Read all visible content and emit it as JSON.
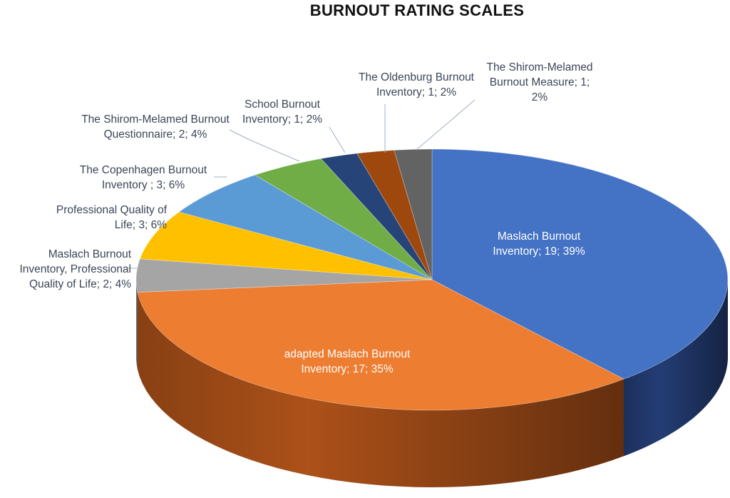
{
  "chart_data": {
    "type": "pie",
    "title": "BURNOUT RATING SCALES",
    "slices": [
      {
        "category": "Maslach Burnout Inventory",
        "value": 19,
        "percent": "39%",
        "label": "Maslach Burnout Inventory; 19; 39%",
        "color": "#4472c4",
        "side": "#25407a"
      },
      {
        "category": "adapted Maslach Burnout Inventory",
        "value": 17,
        "percent": "35%",
        "label": "adapted Maslach Burnout Inventory; 17; 35%",
        "color": "#ed7d31",
        "side": "#b5551a"
      },
      {
        "category": "Maslach Burnout Inventory, Professional Quality of Life",
        "value": 2,
        "percent": "4%",
        "label": "Maslach Burnout Inventory, Professional Quality of Life; 2; 4%",
        "color": "#a5a5a5",
        "side": "#7a7a7a"
      },
      {
        "category": "Professional Quality of Life",
        "value": 3,
        "percent": "6%",
        "label": "Professional Quality of Life; 3; 6%",
        "color": "#ffc000",
        "side": "#c79500"
      },
      {
        "category": "The Copenhagen Burnout Inventory",
        "value": 3,
        "percent": "6%",
        "label": "The Copenhagen Burnout Inventory ; 3; 6%",
        "color": "#5b9bd5",
        "side": "#3a6f9e"
      },
      {
        "category": "The Shirom-Melamed Burnout Questionnaire",
        "value": 2,
        "percent": "4%",
        "label": "The Shirom-Melamed Burnout Questionnaire; 2; 4%",
        "color": "#70ad47",
        "side": "#4e7f30"
      },
      {
        "category": "School Burnout Inventory",
        "value": 1,
        "percent": "2%",
        "label": "School Burnout Inventory; 1; 2%",
        "color": "#264478",
        "side": "#172a4b"
      },
      {
        "category": "The Oldenburg Burnout Inventory",
        "value": 1,
        "percent": "2%",
        "label": "The Oldenburg Burnout Inventory; 1; 2%",
        "color": "#9e480e",
        "side": "#6e3109"
      },
      {
        "category": "The Shirom-Melamed Burnout Measure",
        "value": 1,
        "percent": "2%",
        "label": "The Shirom-Melamed Burnout Measure; 1; 2%",
        "color": "#636363",
        "side": "#414141"
      }
    ],
    "legend": "none"
  }
}
